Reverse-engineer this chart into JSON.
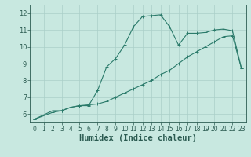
{
  "line1_x": [
    0,
    2,
    3,
    4,
    5,
    6,
    7,
    8,
    9,
    10,
    11,
    12,
    13,
    14,
    15,
    16,
    17,
    18,
    19,
    20,
    21,
    22,
    23
  ],
  "line1_y": [
    5.7,
    6.2,
    6.2,
    6.4,
    6.5,
    6.5,
    7.4,
    8.8,
    9.3,
    10.1,
    11.2,
    11.8,
    11.85,
    11.9,
    11.2,
    10.1,
    10.8,
    10.8,
    10.85,
    11.0,
    11.05,
    10.95,
    8.7
  ],
  "line2_x": [
    0,
    2,
    3,
    4,
    5,
    6,
    7,
    8,
    9,
    10,
    11,
    12,
    13,
    14,
    15,
    16,
    17,
    18,
    19,
    20,
    21,
    22,
    23
  ],
  "line2_y": [
    5.7,
    6.1,
    6.2,
    6.4,
    6.5,
    6.55,
    6.6,
    6.75,
    7.0,
    7.25,
    7.5,
    7.75,
    8.0,
    8.35,
    8.6,
    9.0,
    9.4,
    9.7,
    10.0,
    10.3,
    10.6,
    10.65,
    8.7
  ],
  "line_color": "#2a7a6a",
  "bg_color": "#c8e8e0",
  "grid_color": "#aacfc8",
  "xlabel": "Humidex (Indice chaleur)",
  "xlim": [
    -0.5,
    23.5
  ],
  "ylim": [
    5.5,
    12.5
  ],
  "xticks": [
    0,
    1,
    2,
    3,
    4,
    5,
    6,
    7,
    8,
    9,
    10,
    11,
    12,
    13,
    14,
    15,
    16,
    17,
    18,
    19,
    20,
    21,
    22,
    23
  ],
  "yticks": [
    6,
    7,
    8,
    9,
    10,
    11,
    12
  ],
  "tick_fontsize": 6,
  "xlabel_fontsize": 7.5
}
